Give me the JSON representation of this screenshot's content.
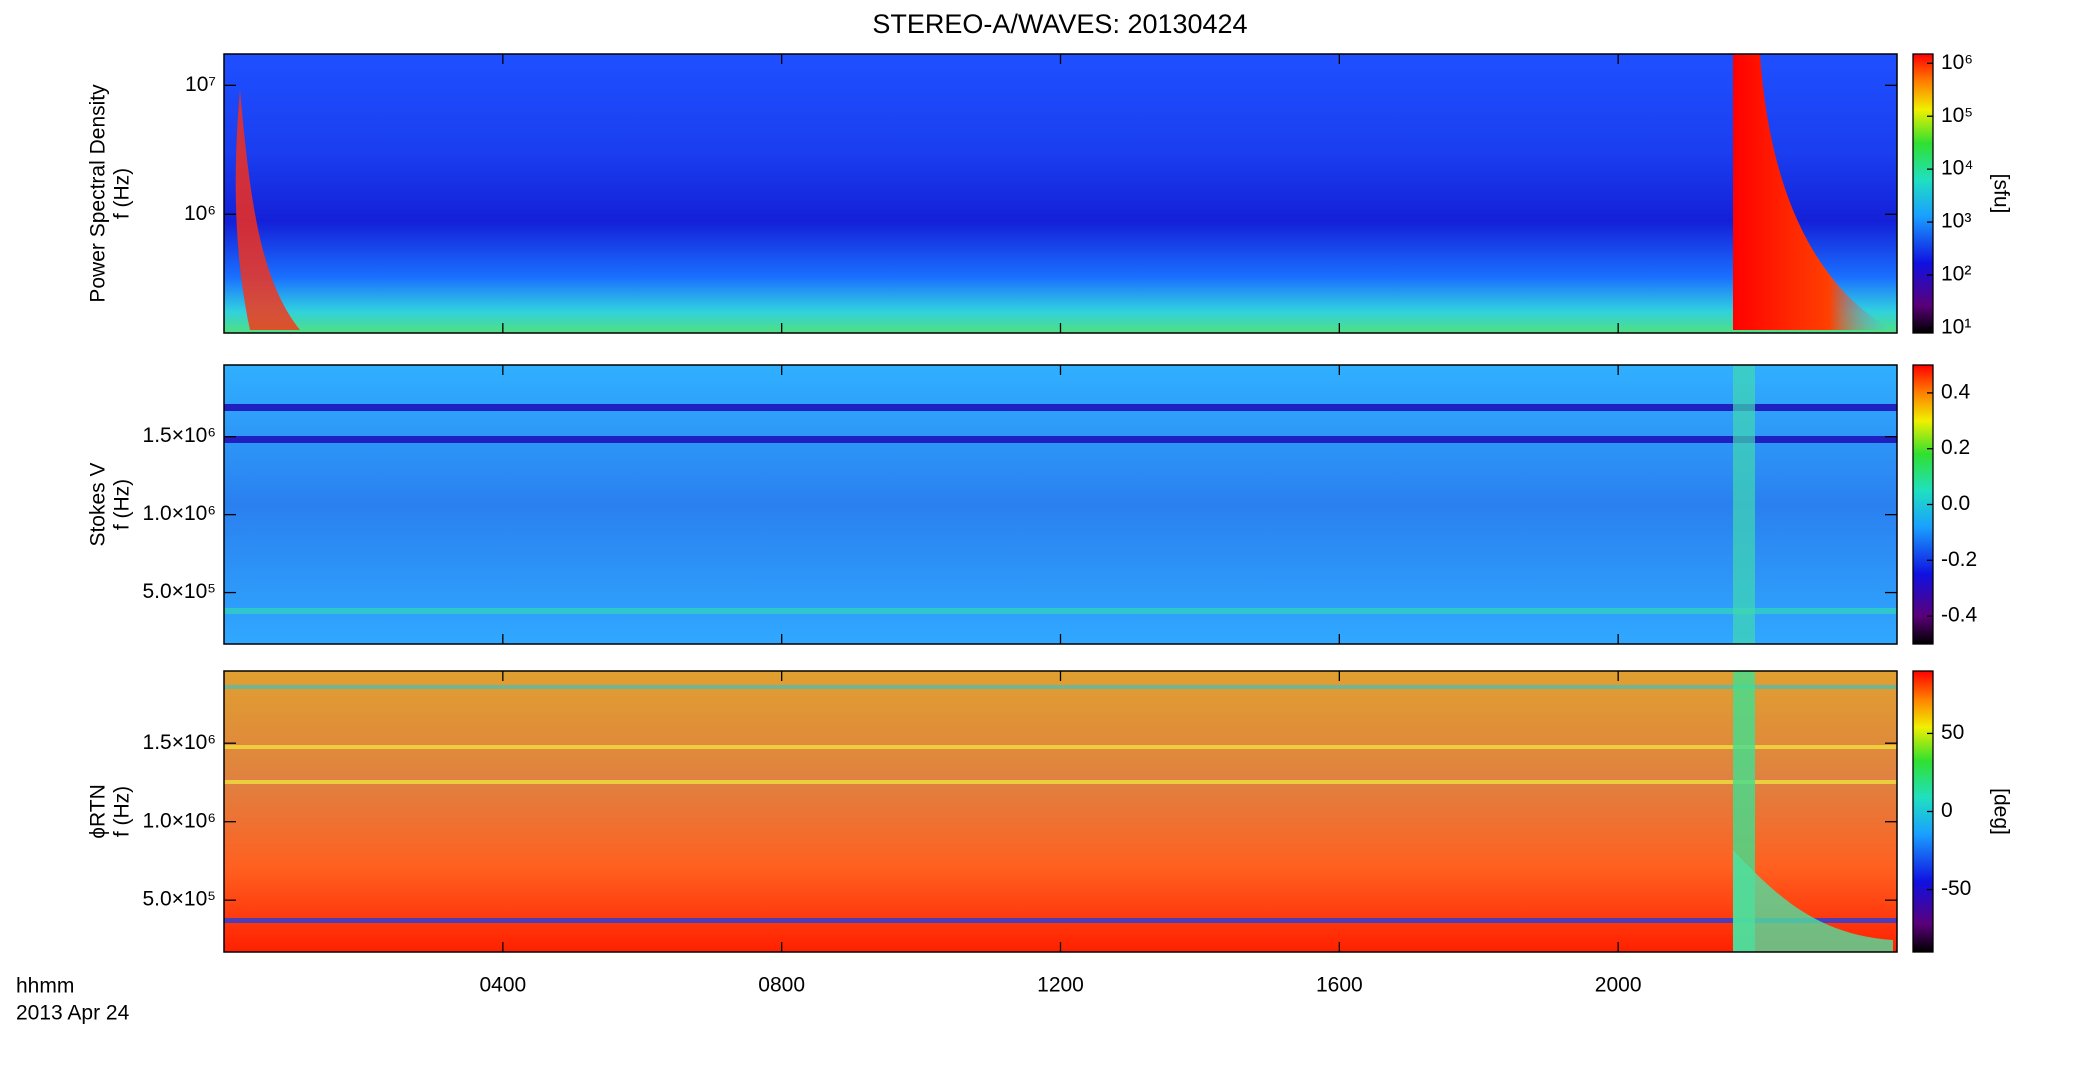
{
  "chart_data": [
    {
      "type": "heatmap",
      "title": "STEREO-A/WAVES: 20130424",
      "ylabel": [
        "Power Spectral Density",
        "f (Hz)"
      ],
      "ylog": true,
      "ylim": [
        120000,
        17500000
      ],
      "yticks": [
        {
          "value": 1000000,
          "label": "10⁶"
        },
        {
          "value": 10000000,
          "label": "10⁷"
        }
      ],
      "clog": true,
      "clim": [
        8,
        1500000
      ],
      "cticks": [
        {
          "value": 10,
          "label": "10¹"
        },
        {
          "value": 100,
          "label": "10²"
        },
        {
          "value": 1000,
          "label": "10³"
        },
        {
          "value": 10000,
          "label": "10⁴"
        },
        {
          "value": 100000,
          "label": "10⁵"
        },
        {
          "value": 1000000,
          "label": "10⁶"
        }
      ],
      "clabel": "[sfu]"
    },
    {
      "type": "heatmap",
      "ylabel": [
        "Stokes V",
        "f (Hz)"
      ],
      "ylog": false,
      "ylim": [
        170000,
        1960000
      ],
      "yticks": [
        {
          "value": 500000,
          "label": "5.0×10⁵"
        },
        {
          "value": 1000000,
          "label": "1.0×10⁶"
        },
        {
          "value": 1500000,
          "label": "1.5×10⁶"
        }
      ],
      "clog": false,
      "clim": [
        -0.5,
        0.5
      ],
      "cticks": [
        -0.4,
        -0.2,
        {
          "value": 0,
          "label": "0.0"
        },
        0.2,
        0.4
      ]
    },
    {
      "type": "heatmap",
      "ylabel": [
        "ϕRTN",
        "f (Hz)"
      ],
      "ylog": false,
      "ylim": [
        170000,
        1960000
      ],
      "yticks": [
        {
          "value": 500000,
          "label": "5.0×10⁵"
        },
        {
          "value": 1000000,
          "label": "1.0×10⁶"
        },
        {
          "value": 1500000,
          "label": "1.5×10⁶"
        }
      ],
      "clog": false,
      "clim": [
        -90,
        90
      ],
      "cticks": [
        -50,
        0,
        50
      ],
      "clabel": "[deg]",
      "xlabel": [
        "hhmm",
        "2013 Apr 24"
      ],
      "xlim": [
        0,
        24
      ],
      "xticks": [
        {
          "value": 4,
          "label": "0400"
        },
        {
          "value": 8,
          "label": "0800"
        },
        {
          "value": 12,
          "label": "1200"
        },
        {
          "value": 16,
          "label": "1600"
        },
        {
          "value": 20,
          "label": "2000"
        }
      ]
    }
  ]
}
